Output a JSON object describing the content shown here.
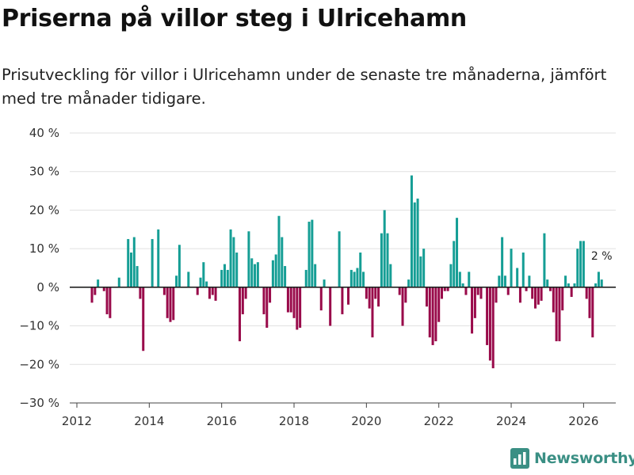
{
  "header": {
    "title": "Priserna på villor steg i Ulricehamn",
    "subtitle": "Prisutveckling för villor i Ulricehamn under de senaste tre månaderna, jämfört med tre månader tidigare."
  },
  "brand": {
    "name": "Newsworthy",
    "icon": "bar-chart-logo-icon",
    "color": "#3a8f84"
  },
  "colors": {
    "positive": "#159e95",
    "negative": "#990a4a",
    "grid": "#e1e1e1",
    "zero": "#222222"
  },
  "chart_data": {
    "type": "bar",
    "title": "Priserna på villor steg i Ulricehamn",
    "xlabel": "",
    "ylabel": "",
    "ylim": [
      -30,
      40
    ],
    "xlim": [
      2012,
      2026.85
    ],
    "yticks": [
      40,
      30,
      20,
      10,
      0,
      -10,
      -20,
      -30
    ],
    "ytick_labels": [
      "40 %",
      "30 %",
      "20 %",
      "10 %",
      "0 %",
      "−10 %",
      "−20 %",
      "−30 %"
    ],
    "xticks": [
      2012,
      2014,
      2016,
      2018,
      2020,
      2022,
      2024,
      2026
    ],
    "xtick_labels": [
      "2012",
      "2014",
      "2016",
      "2018",
      "2020",
      "2022",
      "2024",
      "2026"
    ],
    "grid": true,
    "start": "2012-06",
    "frequency": "monthly",
    "values": [
      -4,
      -2,
      2,
      0,
      -1,
      -7,
      -8,
      0,
      0,
      2.5,
      0,
      0,
      12.5,
      9,
      13,
      5.5,
      -3,
      -16.5,
      0,
      0,
      12.5,
      0,
      15,
      0,
      -2,
      -8,
      -9,
      -8.5,
      3,
      11,
      0,
      0,
      4,
      0,
      0,
      -2,
      2.5,
      6.5,
      1.5,
      -3,
      -2,
      -3.5,
      0,
      4.5,
      6,
      4.5,
      15,
      13,
      9,
      -14,
      -7,
      -3,
      14.5,
      7.5,
      6,
      6.5,
      0,
      -7,
      -10.5,
      -4,
      7,
      8.5,
      18.5,
      13,
      5.5,
      -6.5,
      -6.5,
      -8,
      -11,
      -10.5,
      0,
      4.5,
      17,
      17.5,
      6,
      0,
      -6,
      2,
      0,
      -10,
      0,
      0,
      14.5,
      -7,
      0,
      -4.5,
      4.5,
      4,
      5,
      9,
      4,
      -3,
      -5.5,
      -13,
      -3,
      -5,
      14,
      20,
      14,
      6,
      0,
      0,
      -2,
      -10,
      -4,
      2,
      29,
      22,
      23,
      8,
      10,
      -5,
      -13,
      -15,
      -14,
      -9,
      -3,
      -1,
      -1,
      6,
      12,
      18,
      4,
      1,
      -2,
      4,
      -12,
      -8,
      -2,
      -3,
      0,
      -15,
      -19,
      -21,
      -4,
      3,
      13,
      3,
      -2,
      10,
      0,
      5,
      -4,
      9,
      -1,
      3,
      -3,
      -5.5,
      -4.5,
      -3.5,
      14,
      2,
      -1,
      -6.5,
      -14,
      -14,
      -6,
      3,
      1,
      -2.5,
      1,
      10,
      12,
      12,
      -3,
      -8,
      -13,
      1,
      4,
      2
    ],
    "annotation": {
      "label": "2 %",
      "value": 2
    }
  }
}
